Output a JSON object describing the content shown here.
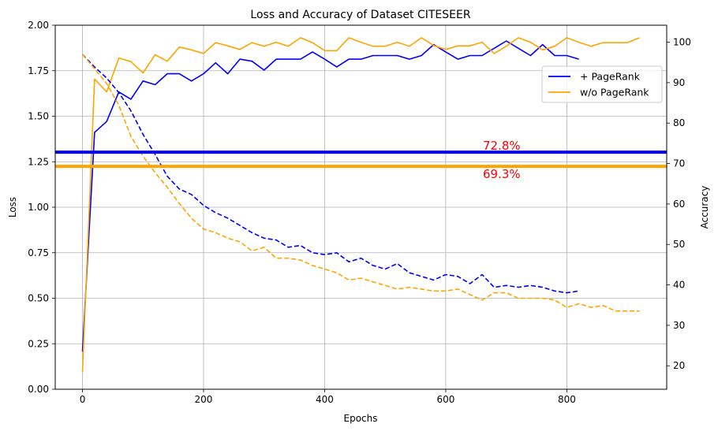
{
  "chart_data": {
    "type": "line",
    "title": "Loss and Accuracy of Dataset CITESEER",
    "xlabel": "Epochs",
    "ylabel_left": "Loss",
    "ylabel_right": "Accuracy",
    "xlim": [
      -45,
      965
    ],
    "ylim_left": [
      0,
      2
    ],
    "ylim_right": [
      14.2,
      104.2
    ],
    "x_ticks": [
      0,
      200,
      400,
      600,
      800
    ],
    "y_ticks_left": [
      0.0,
      0.25,
      0.5,
      0.75,
      1.0,
      1.25,
      1.5,
      1.75,
      2.0
    ],
    "y_ticks_left_labels": [
      "0.00",
      "0.25",
      "0.50",
      "0.75",
      "1.00",
      "1.25",
      "1.50",
      "1.75",
      "2.00"
    ],
    "y_ticks_right": [
      20,
      30,
      40,
      50,
      60,
      70,
      80,
      90,
      100
    ],
    "grid": true,
    "legend": {
      "placement": "upper-right",
      "entries": [
        {
          "label": "+ PageRank",
          "color": "#0000ff"
        },
        {
          "label": "w/o PageRank",
          "color": "#ffa500"
        }
      ]
    },
    "series": [
      {
        "name": "+ PageRank",
        "role": "accuracy",
        "axis": "right",
        "style": "solid",
        "color": "#0000ff",
        "x": [
          0,
          20,
          40,
          60,
          80,
          100,
          120,
          140,
          160,
          180,
          200,
          220,
          240,
          260,
          280,
          300,
          320,
          340,
          360,
          380,
          400,
          420,
          440,
          460,
          480,
          500,
          520,
          540,
          560,
          580,
          600,
          620,
          640,
          660,
          680,
          700,
          720,
          740,
          760,
          780,
          800,
          820
        ],
        "y": [
          23.5,
          77.7,
          80.4,
          87.7,
          85.9,
          90.4,
          89.5,
          92.2,
          92.2,
          90.4,
          92.2,
          94.9,
          92.2,
          95.8,
          95.3,
          93.1,
          95.8,
          95.8,
          95.8,
          97.6,
          95.8,
          93.9,
          95.8,
          95.8,
          96.7,
          96.7,
          96.7,
          95.8,
          96.7,
          99.4,
          97.6,
          95.8,
          96.7,
          96.7,
          98.5,
          100.3,
          98.5,
          96.7,
          99.4,
          96.7,
          96.7,
          95.8
        ]
      },
      {
        "name": "w/o PageRank",
        "role": "accuracy",
        "axis": "right",
        "style": "solid",
        "color": "#ffa500",
        "x": [
          0,
          20,
          40,
          60,
          80,
          100,
          120,
          140,
          160,
          180,
          200,
          220,
          240,
          260,
          280,
          300,
          320,
          340,
          360,
          380,
          400,
          420,
          440,
          460,
          480,
          500,
          520,
          540,
          560,
          580,
          600,
          620,
          640,
          660,
          680,
          700,
          720,
          740,
          760,
          780,
          800,
          820,
          840,
          860,
          880,
          900,
          920
        ],
        "y": [
          18.4,
          90.9,
          87.7,
          96.1,
          95.2,
          92.4,
          96.9,
          95.3,
          98.8,
          98.1,
          97.2,
          99.9,
          99.1,
          98.2,
          99.9,
          99.0,
          100.0,
          99.0,
          101.1,
          99.9,
          97.9,
          97.9,
          101.1,
          100.0,
          99.0,
          99.0,
          100.0,
          99.0,
          101.1,
          99.2,
          98.2,
          99.1,
          99.1,
          100.0,
          97.2,
          99.0,
          101.1,
          100.0,
          98.1,
          99.0,
          101.1,
          100.0,
          99.0,
          99.9,
          99.9,
          99.9,
          101.1
        ]
      },
      {
        "name": "+ PageRank",
        "role": "loss",
        "axis": "left",
        "style": "dashed",
        "color": "#0000ff",
        "x": [
          0,
          20,
          40,
          60,
          80,
          100,
          120,
          140,
          160,
          180,
          200,
          220,
          240,
          260,
          280,
          300,
          320,
          340,
          360,
          380,
          400,
          420,
          440,
          460,
          480,
          500,
          520,
          540,
          560,
          580,
          600,
          620,
          640,
          660,
          680,
          700,
          720,
          740,
          760,
          780,
          800,
          820
        ],
        "y": [
          1.84,
          1.77,
          1.71,
          1.63,
          1.53,
          1.4,
          1.29,
          1.17,
          1.1,
          1.07,
          1.01,
          0.97,
          0.94,
          0.9,
          0.86,
          0.83,
          0.82,
          0.78,
          0.79,
          0.75,
          0.74,
          0.75,
          0.7,
          0.72,
          0.68,
          0.66,
          0.69,
          0.64,
          0.62,
          0.6,
          0.63,
          0.62,
          0.58,
          0.63,
          0.56,
          0.57,
          0.56,
          0.57,
          0.56,
          0.54,
          0.53,
          0.54
        ]
      },
      {
        "name": "w/o PageRank",
        "role": "loss",
        "axis": "left",
        "style": "dashed",
        "color": "#ffa500",
        "x": [
          0,
          20,
          40,
          60,
          80,
          100,
          120,
          140,
          160,
          180,
          200,
          220,
          240,
          260,
          280,
          300,
          320,
          340,
          360,
          380,
          400,
          420,
          440,
          460,
          480,
          500,
          520,
          540,
          560,
          580,
          600,
          620,
          640,
          660,
          680,
          700,
          720,
          740,
          760,
          780,
          800,
          820,
          840,
          860,
          880,
          900,
          920
        ],
        "y": [
          1.84,
          1.76,
          1.68,
          1.56,
          1.39,
          1.28,
          1.19,
          1.11,
          1.02,
          0.94,
          0.88,
          0.86,
          0.83,
          0.81,
          0.76,
          0.78,
          0.72,
          0.72,
          0.71,
          0.68,
          0.66,
          0.64,
          0.6,
          0.61,
          0.59,
          0.57,
          0.55,
          0.56,
          0.55,
          0.54,
          0.54,
          0.55,
          0.52,
          0.49,
          0.53,
          0.53,
          0.5,
          0.5,
          0.5,
          0.49,
          0.45,
          0.47,
          0.45,
          0.46,
          0.43,
          0.43,
          0.43
        ]
      }
    ],
    "hlines": [
      {
        "axis": "right",
        "y": 72.8,
        "color": "#0000ff",
        "label": "72.8%"
      },
      {
        "axis": "right",
        "y": 69.3,
        "color": "#ffa500",
        "label": "69.3%"
      }
    ],
    "annotation_color": "#ff0000"
  }
}
